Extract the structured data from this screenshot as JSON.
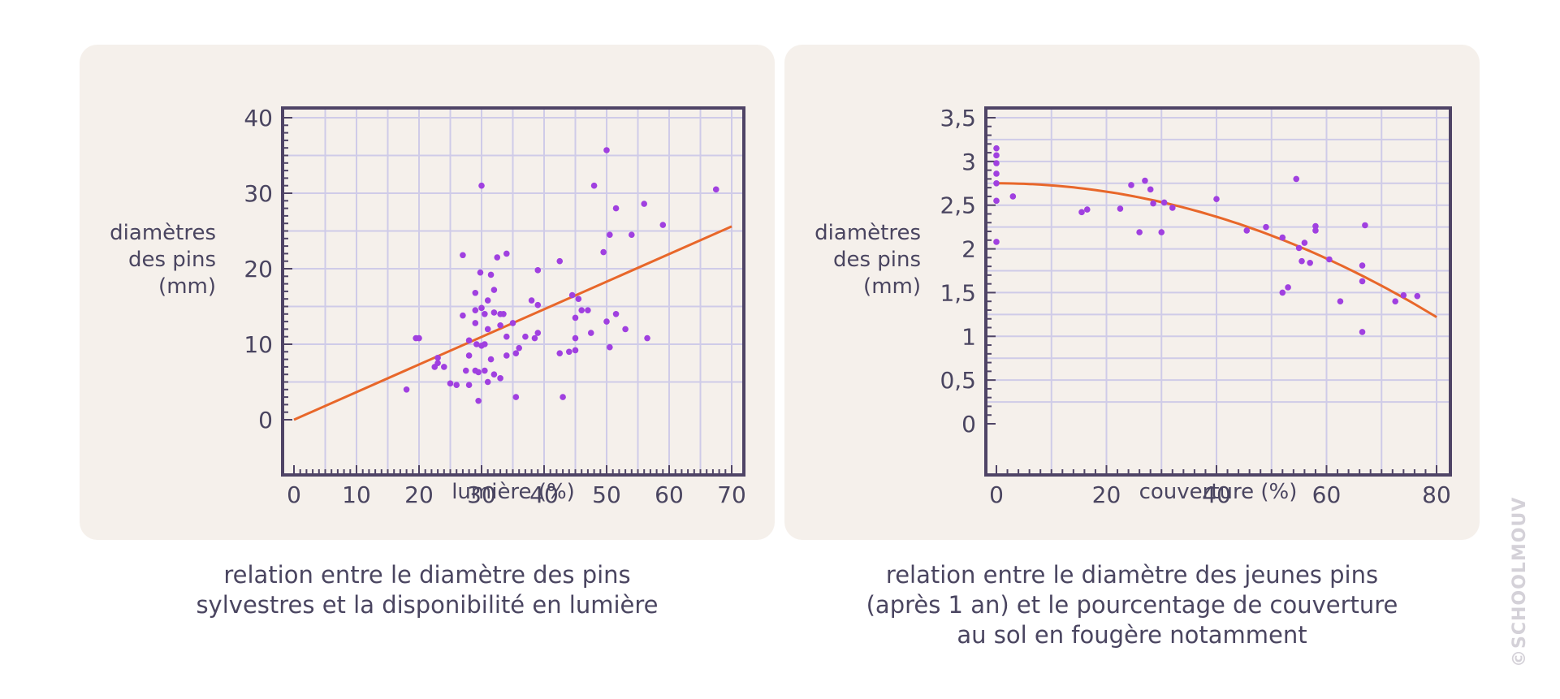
{
  "chart_data": [
    {
      "type": "scatter",
      "xlabel": "lumière (%)",
      "ylabel": [
        "diamètres",
        "des pins",
        "(mm)"
      ],
      "xlim": [
        0,
        70
      ],
      "ylim": [
        0,
        40
      ],
      "x_ticks": [
        "0",
        "10",
        "20",
        "30",
        "40",
        "50",
        "60",
        "70"
      ],
      "y_ticks": [
        "0",
        "10",
        "20",
        "30",
        "40"
      ],
      "grid": true,
      "trend": {
        "type": "linear",
        "points": [
          [
            0,
            0
          ],
          [
            70,
            25.6
          ]
        ],
        "color": "#e8672a"
      },
      "point_color": "#a040e0",
      "points": [
        [
          18,
          4
        ],
        [
          19.5,
          10.8
        ],
        [
          20,
          10.8
        ],
        [
          22.5,
          7
        ],
        [
          23,
          7.5
        ],
        [
          23,
          8.2
        ],
        [
          24,
          7
        ],
        [
          25,
          4.8
        ],
        [
          26,
          4.6
        ],
        [
          27,
          13.8
        ],
        [
          27,
          21.8
        ],
        [
          27.5,
          6.5
        ],
        [
          28,
          4.6
        ],
        [
          28,
          8.5
        ],
        [
          28,
          10.5
        ],
        [
          29,
          12.8
        ],
        [
          29,
          6.5
        ],
        [
          29,
          14.5
        ],
        [
          29,
          16.8
        ],
        [
          29.2,
          10
        ],
        [
          29.5,
          2.5
        ],
        [
          29.5,
          6.3
        ],
        [
          29.8,
          19.5
        ],
        [
          30,
          14.8
        ],
        [
          30,
          31
        ],
        [
          30,
          9.8
        ],
        [
          30.5,
          6.5
        ],
        [
          30.5,
          10
        ],
        [
          30.5,
          14
        ],
        [
          31,
          12
        ],
        [
          31,
          5
        ],
        [
          31,
          15.8
        ],
        [
          31.5,
          19.2
        ],
        [
          31.5,
          8
        ],
        [
          32,
          17.2
        ],
        [
          32,
          6
        ],
        [
          32,
          14.2
        ],
        [
          32.5,
          21.5
        ],
        [
          33,
          12.5
        ],
        [
          33,
          5.5
        ],
        [
          33,
          14
        ],
        [
          33.5,
          14
        ],
        [
          34,
          22
        ],
        [
          34,
          11
        ],
        [
          34,
          8.5
        ],
        [
          35,
          12.8
        ],
        [
          35.5,
          8.8
        ],
        [
          35.5,
          3
        ],
        [
          36,
          9.5
        ],
        [
          37,
          11
        ],
        [
          38,
          15.8
        ],
        [
          38.5,
          10.8
        ],
        [
          39,
          19.8
        ],
        [
          39,
          11.5
        ],
        [
          39,
          15.2
        ],
        [
          42.5,
          21
        ],
        [
          42.5,
          8.8
        ],
        [
          43,
          3
        ],
        [
          44,
          9
        ],
        [
          44.5,
          16.5
        ],
        [
          45,
          9.2
        ],
        [
          45,
          10.8
        ],
        [
          45,
          13.5
        ],
        [
          45.5,
          16
        ],
        [
          46,
          14.5
        ],
        [
          47,
          14.5
        ],
        [
          47.5,
          11.5
        ],
        [
          48,
          31
        ],
        [
          49.5,
          22.2
        ],
        [
          50,
          13
        ],
        [
          50.5,
          24.5
        ],
        [
          50.5,
          9.6
        ],
        [
          50,
          35.7
        ],
        [
          51.5,
          14
        ],
        [
          51.5,
          28
        ],
        [
          53,
          12
        ],
        [
          54,
          24.5
        ],
        [
          56,
          28.6
        ],
        [
          56.5,
          10.8
        ],
        [
          59,
          25.8
        ],
        [
          67.5,
          30.5
        ]
      ]
    },
    {
      "type": "scatter",
      "xlabel": "couverture (%)",
      "ylabel": [
        "diamètres",
        "des pins",
        "(mm)"
      ],
      "xlim": [
        0,
        80
      ],
      "ylim": [
        0,
        3.5
      ],
      "x_ticks": [
        "0",
        "20",
        "40",
        "60",
        "80"
      ],
      "y_ticks": [
        "0",
        "0,5",
        "1",
        "1,5",
        "2",
        "2,5",
        "3",
        "3,5"
      ],
      "grid": true,
      "trend": {
        "type": "quadratic",
        "vertex_y": 2.75,
        "y_at_80": 1.22,
        "color": "#e8672a"
      },
      "point_color": "#a040e0",
      "points": [
        [
          0,
          3.15
        ],
        [
          0,
          3.07
        ],
        [
          0,
          2.98
        ],
        [
          0,
          2.86
        ],
        [
          0,
          2.75
        ],
        [
          0,
          2.55
        ],
        [
          0,
          2.08
        ],
        [
          3,
          2.6
        ],
        [
          15.5,
          2.42
        ],
        [
          16.5,
          2.45
        ],
        [
          22.5,
          2.46
        ],
        [
          24.5,
          2.73
        ],
        [
          26,
          2.19
        ],
        [
          27,
          2.78
        ],
        [
          28,
          2.68
        ],
        [
          28.5,
          2.52
        ],
        [
          30,
          2.19
        ],
        [
          30.5,
          2.53
        ],
        [
          32,
          2.47
        ],
        [
          40,
          2.57
        ],
        [
          45.5,
          2.21
        ],
        [
          49,
          2.25
        ],
        [
          52,
          1.5
        ],
        [
          52,
          2.13
        ],
        [
          53,
          1.56
        ],
        [
          54.5,
          2.8
        ],
        [
          55,
          2.01
        ],
        [
          55.5,
          1.86
        ],
        [
          56,
          2.07
        ],
        [
          57,
          1.84
        ],
        [
          58,
          2.26
        ],
        [
          58,
          2.21
        ],
        [
          60.5,
          1.88
        ],
        [
          62.5,
          1.4
        ],
        [
          66.5,
          1.05
        ],
        [
          66.5,
          1.63
        ],
        [
          66.5,
          1.81
        ],
        [
          67,
          2.27
        ],
        [
          72.5,
          1.4
        ],
        [
          74,
          1.47
        ],
        [
          76.5,
          1.46
        ]
      ]
    }
  ],
  "captions": [
    [
      "relation entre le diamètre des pins",
      "sylvestres et la disponibilité en lumière"
    ],
    [
      "relation entre le diamètre des jeunes pins",
      "(après 1 an) et le pourcentage de couverture",
      "au sol en fougère notamment"
    ]
  ],
  "watermark": "©SCHOOLMOUV"
}
